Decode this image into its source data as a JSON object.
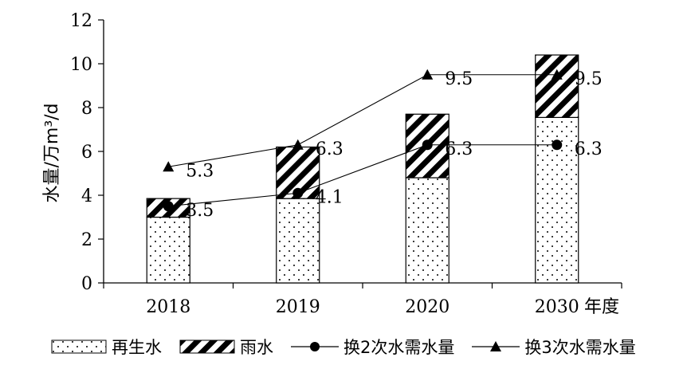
{
  "chart_data": {
    "type": "bar",
    "stacked": true,
    "categories": [
      "2018",
      "2019",
      "2020",
      "2030"
    ],
    "x_axis_suffix": "年度",
    "ylabel": "水量/万m³/d",
    "ylim": [
      0,
      12
    ],
    "yticks": [
      0,
      2,
      4,
      6,
      8,
      10,
      12
    ],
    "grid": false,
    "legend_position": "bottom",
    "series": [
      {
        "name": "再生水",
        "kind": "bar",
        "pattern": "dots",
        "values": [
          3.0,
          3.85,
          4.8,
          7.55
        ]
      },
      {
        "name": "雨水",
        "kind": "bar",
        "pattern": "diagonal-stripes",
        "values": [
          0.85,
          2.35,
          2.9,
          2.85
        ]
      },
      {
        "name": "换2次水需水量",
        "kind": "line",
        "marker": "circle",
        "values": [
          3.5,
          4.1,
          6.3,
          6.3
        ],
        "labels": [
          "3.5",
          "4.1",
          "6.3",
          "6.3"
        ]
      },
      {
        "name": "换3次水需水量",
        "kind": "line",
        "marker": "triangle",
        "values": [
          5.3,
          6.3,
          9.5,
          9.5
        ],
        "labels": [
          "5.3",
          "6.3",
          "9.5",
          "9.5"
        ]
      }
    ],
    "colors": {
      "ink": "#000000",
      "background": "#ffffff"
    }
  }
}
